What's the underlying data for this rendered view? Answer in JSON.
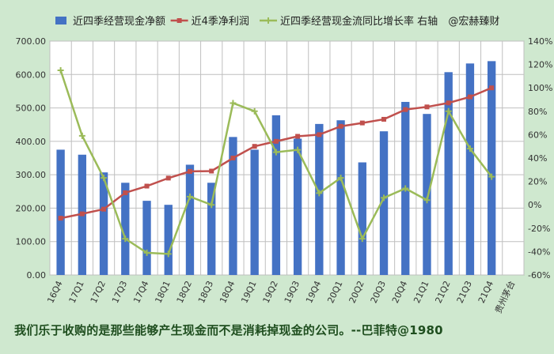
{
  "chart_data": {
    "type": "bar+line",
    "categories": [
      "16Q4",
      "17Q1",
      "17Q2",
      "17Q3",
      "17Q4",
      "18Q1",
      "18Q2",
      "18Q3",
      "18Q4",
      "19Q1",
      "19Q2",
      "19Q3",
      "19Q4",
      "20Q1",
      "20Q2",
      "20Q3",
      "20Q4",
      "21Q1",
      "21Q2",
      "21Q3",
      "21Q4",
      "贵州茅台"
    ],
    "series": [
      {
        "name": "近四季经营现金净额",
        "kind": "bar",
        "axis": "left",
        "color": "#4472c4",
        "values": [
          375,
          360,
          307,
          276,
          222,
          210,
          330,
          276,
          413,
          375,
          478,
          408,
          452,
          463,
          337,
          430,
          518,
          482,
          607,
          633,
          640,
          null
        ]
      },
      {
        "name": "近4季净利润",
        "kind": "line",
        "axis": "left",
        "color": "#c0504d",
        "values": [
          170,
          183,
          197,
          246,
          266,
          290,
          310,
          311,
          350,
          385,
          400,
          415,
          420,
          445,
          455,
          466,
          495,
          503,
          515,
          533,
          560,
          null
        ]
      },
      {
        "name": "近四季经营现金流同比增长率 右轴",
        "kind": "line",
        "axis": "right",
        "color": "#9bbb59",
        "values": [
          115,
          59,
          23,
          -29,
          -41,
          -42,
          7,
          0,
          87,
          80,
          45,
          47,
          10,
          23,
          -29,
          6,
          14,
          4,
          80,
          48,
          24,
          null
        ]
      }
    ],
    "legend_extra": "@宏赫臻财",
    "y_left": {
      "ticks": [
        "0.00",
        "100.00",
        "200.00",
        "300.00",
        "400.00",
        "500.00",
        "600.00",
        "700.00"
      ],
      "range": [
        0,
        700
      ]
    },
    "y_right": {
      "ticks": [
        "-60%",
        "-40%",
        "-20%",
        "0%",
        "20%",
        "40%",
        "60%",
        "80%",
        "100%",
        "120%",
        "140%"
      ],
      "range": [
        -60,
        140
      ]
    },
    "grid": true,
    "legend_position": "top"
  },
  "footer": {
    "text": "我们乐于收购的是那些能够产生现金而不是消耗掉现金的公司。--巴菲特@1980"
  },
  "colors": {
    "background": "#cfe8cf",
    "plot_background": "#ffffff",
    "grid": "#bfbfbf"
  }
}
